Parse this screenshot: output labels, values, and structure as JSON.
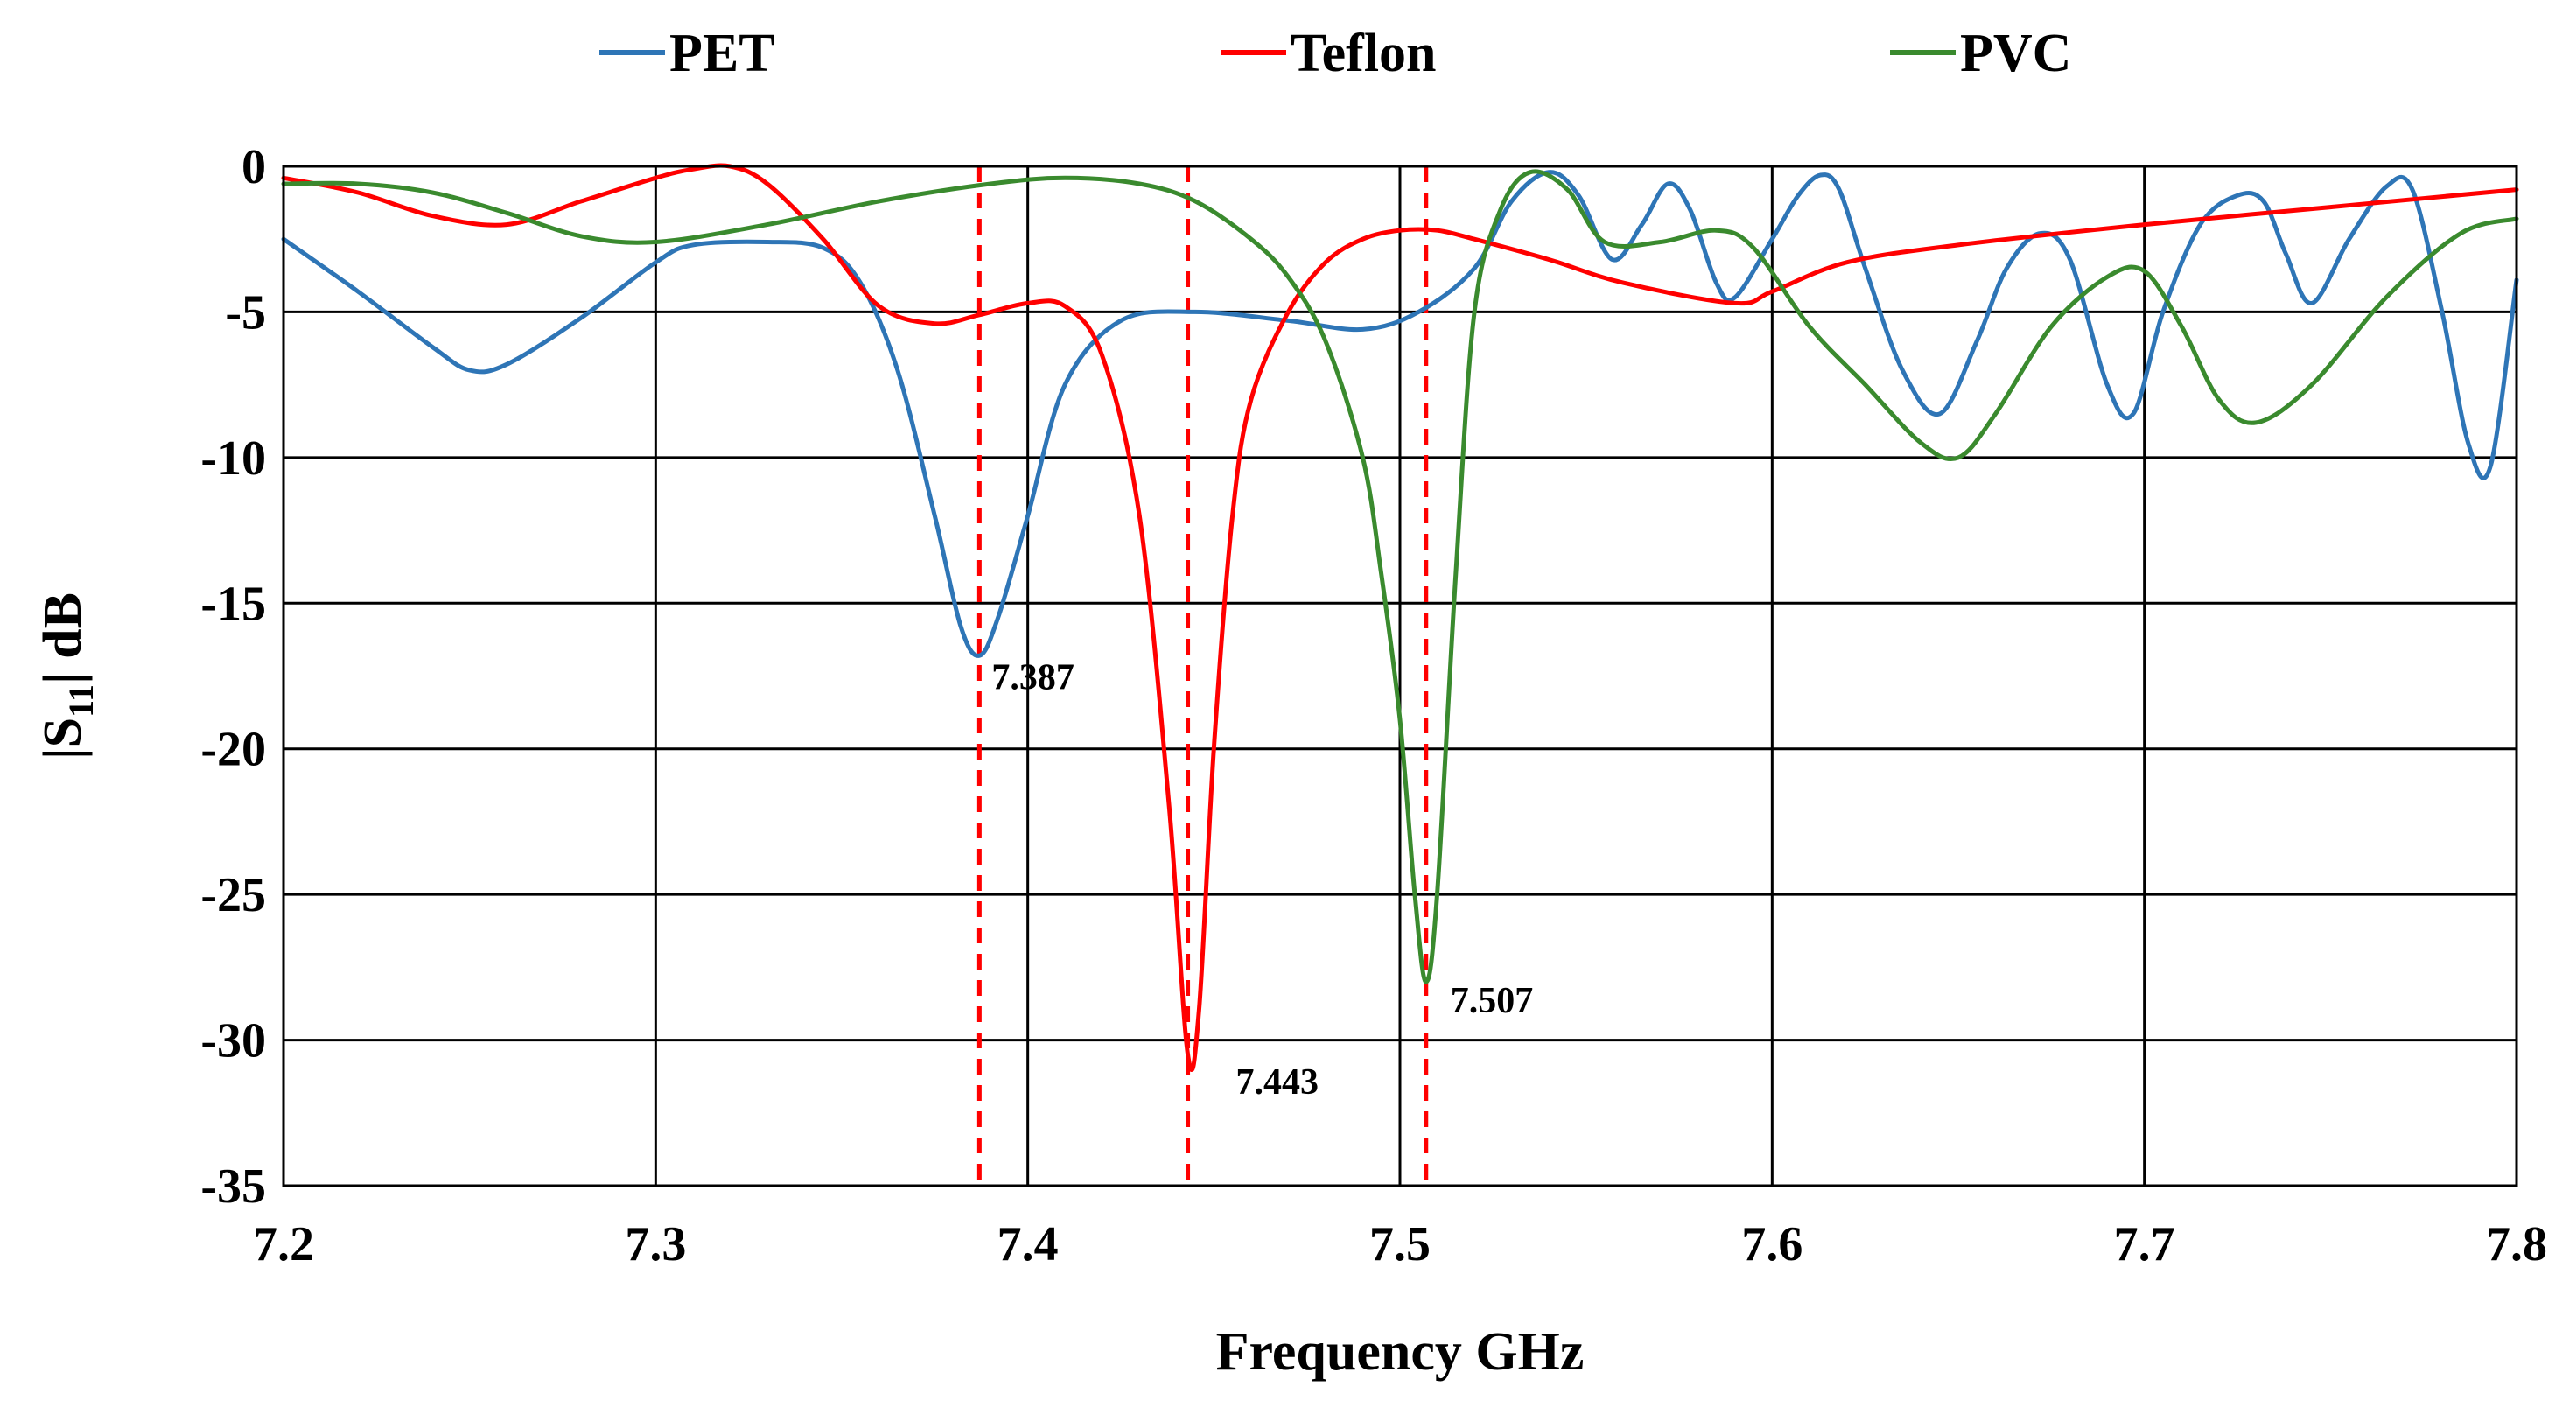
{
  "chart_data": {
    "type": "line",
    "title": "",
    "xlabel": "Frequency GHz",
    "ylabel": {
      "prefix": "|S",
      "subscript": "11",
      "suffix": "| dB"
    },
    "xlim": [
      7.2,
      7.8
    ],
    "ylim": [
      -35,
      0
    ],
    "xticks": [
      7.2,
      7.3,
      7.4,
      7.5,
      7.6,
      7.7,
      7.8
    ],
    "yticks": [
      0,
      -5,
      -10,
      -15,
      -20,
      -25,
      -30,
      -35
    ],
    "xtick_labels": [
      "7.2",
      "7.3",
      "7.4",
      "7.5",
      "7.6",
      "7.7",
      "7.8"
    ],
    "ytick_labels": [
      "0",
      "-5",
      "-10",
      "-15",
      "-20",
      "-25",
      "-30",
      "-35"
    ],
    "grid": true,
    "legend_position": "top",
    "series": [
      {
        "name": "PET",
        "color": "#2e75b6",
        "x": [
          7.2,
          7.22,
          7.24,
          7.25,
          7.26,
          7.28,
          7.3,
          7.31,
          7.33,
          7.345,
          7.355,
          7.365,
          7.375,
          7.382,
          7.387,
          7.392,
          7.4,
          7.41,
          7.425,
          7.445,
          7.47,
          7.49,
          7.505,
          7.52,
          7.53,
          7.54,
          7.548,
          7.557,
          7.565,
          7.572,
          7.578,
          7.585,
          7.59,
          7.6,
          7.607,
          7.613,
          7.618,
          7.625,
          7.635,
          7.645,
          7.655,
          7.663,
          7.672,
          7.68,
          7.69,
          7.697,
          7.705,
          7.715,
          7.725,
          7.732,
          7.738,
          7.745,
          7.755,
          7.765,
          7.772,
          7.78,
          7.787,
          7.793,
          7.8
        ],
        "y": [
          -2.5,
          -4.3,
          -6.2,
          -7.0,
          -6.8,
          -5.2,
          -3.3,
          -2.7,
          -2.6,
          -2.8,
          -4.0,
          -7.0,
          -12.0,
          -15.8,
          -16.8,
          -15.5,
          -12.0,
          -7.5,
          -5.3,
          -5.0,
          -5.3,
          -5.6,
          -5.0,
          -3.5,
          -1.2,
          -0.2,
          -1.0,
          -3.2,
          -2.0,
          -0.6,
          -1.5,
          -4.0,
          -4.5,
          -2.5,
          -1.0,
          -0.3,
          -0.8,
          -3.5,
          -7.0,
          -8.5,
          -6.0,
          -3.5,
          -2.3,
          -3.2,
          -7.5,
          -8.5,
          -5.0,
          -2.0,
          -1.0,
          -1.2,
          -3.0,
          -4.7,
          -2.5,
          -0.7,
          -0.8,
          -5.0,
          -9.5,
          -10.3,
          -3.9
        ]
      },
      {
        "name": "Teflon",
        "color": "#ff0000",
        "x": [
          7.2,
          7.22,
          7.24,
          7.26,
          7.28,
          7.3,
          7.31,
          7.32,
          7.33,
          7.345,
          7.36,
          7.375,
          7.387,
          7.4,
          7.41,
          7.42,
          7.43,
          7.438,
          7.443,
          7.446,
          7.45,
          7.455,
          7.46,
          7.47,
          7.48,
          7.49,
          7.5,
          7.51,
          7.52,
          7.54,
          7.56,
          7.59,
          7.6,
          7.62,
          7.65,
          7.7,
          7.75,
          7.8
        ],
        "y": [
          -0.4,
          -0.9,
          -1.7,
          -2.0,
          -1.2,
          -0.4,
          -0.1,
          0.0,
          -0.6,
          -2.5,
          -4.8,
          -5.4,
          -5.1,
          -4.7,
          -4.8,
          -6.5,
          -12.0,
          -22.0,
          -30.5,
          -29.0,
          -20.0,
          -12.0,
          -8.0,
          -5.0,
          -3.3,
          -2.5,
          -2.2,
          -2.2,
          -2.5,
          -3.2,
          -4.0,
          -4.7,
          -4.3,
          -3.3,
          -2.7,
          -2.0,
          -1.4,
          -0.8
        ]
      },
      {
        "name": "PVC",
        "color": "#3a8a2e",
        "x": [
          7.2,
          7.22,
          7.24,
          7.26,
          7.28,
          7.3,
          7.33,
          7.36,
          7.39,
          7.41,
          7.43,
          7.445,
          7.46,
          7.47,
          7.48,
          7.49,
          7.495,
          7.5,
          7.504,
          7.507,
          7.51,
          7.515,
          7.52,
          7.527,
          7.535,
          7.545,
          7.555,
          7.57,
          7.585,
          7.595,
          7.61,
          7.625,
          7.64,
          7.65,
          7.66,
          7.675,
          7.69,
          7.7,
          7.71,
          7.72,
          7.73,
          7.745,
          7.765,
          7.785,
          7.8
        ],
        "y": [
          -0.6,
          -0.6,
          -0.9,
          -1.6,
          -2.4,
          -2.6,
          -2.0,
          -1.2,
          -0.6,
          -0.4,
          -0.6,
          -1.2,
          -2.5,
          -3.8,
          -6.0,
          -10.0,
          -14.0,
          -19.0,
          -25.0,
          -28.0,
          -25.0,
          -14.0,
          -5.0,
          -1.5,
          -0.2,
          -0.8,
          -2.6,
          -2.6,
          -2.2,
          -2.8,
          -5.5,
          -7.5,
          -9.5,
          -10.0,
          -8.5,
          -5.5,
          -3.8,
          -3.6,
          -5.5,
          -8.0,
          -8.8,
          -7.5,
          -4.5,
          -2.3,
          -1.8
        ]
      }
    ],
    "markers": [
      {
        "x": 7.387,
        "label": "7.387",
        "color": "#ff0000",
        "style": "dashed"
      },
      {
        "x": 7.443,
        "label": "7.443",
        "color": "#ff0000",
        "style": "dashed"
      },
      {
        "x": 7.507,
        "label": "7.507",
        "color": "#ff0000",
        "style": "dashed"
      }
    ]
  }
}
